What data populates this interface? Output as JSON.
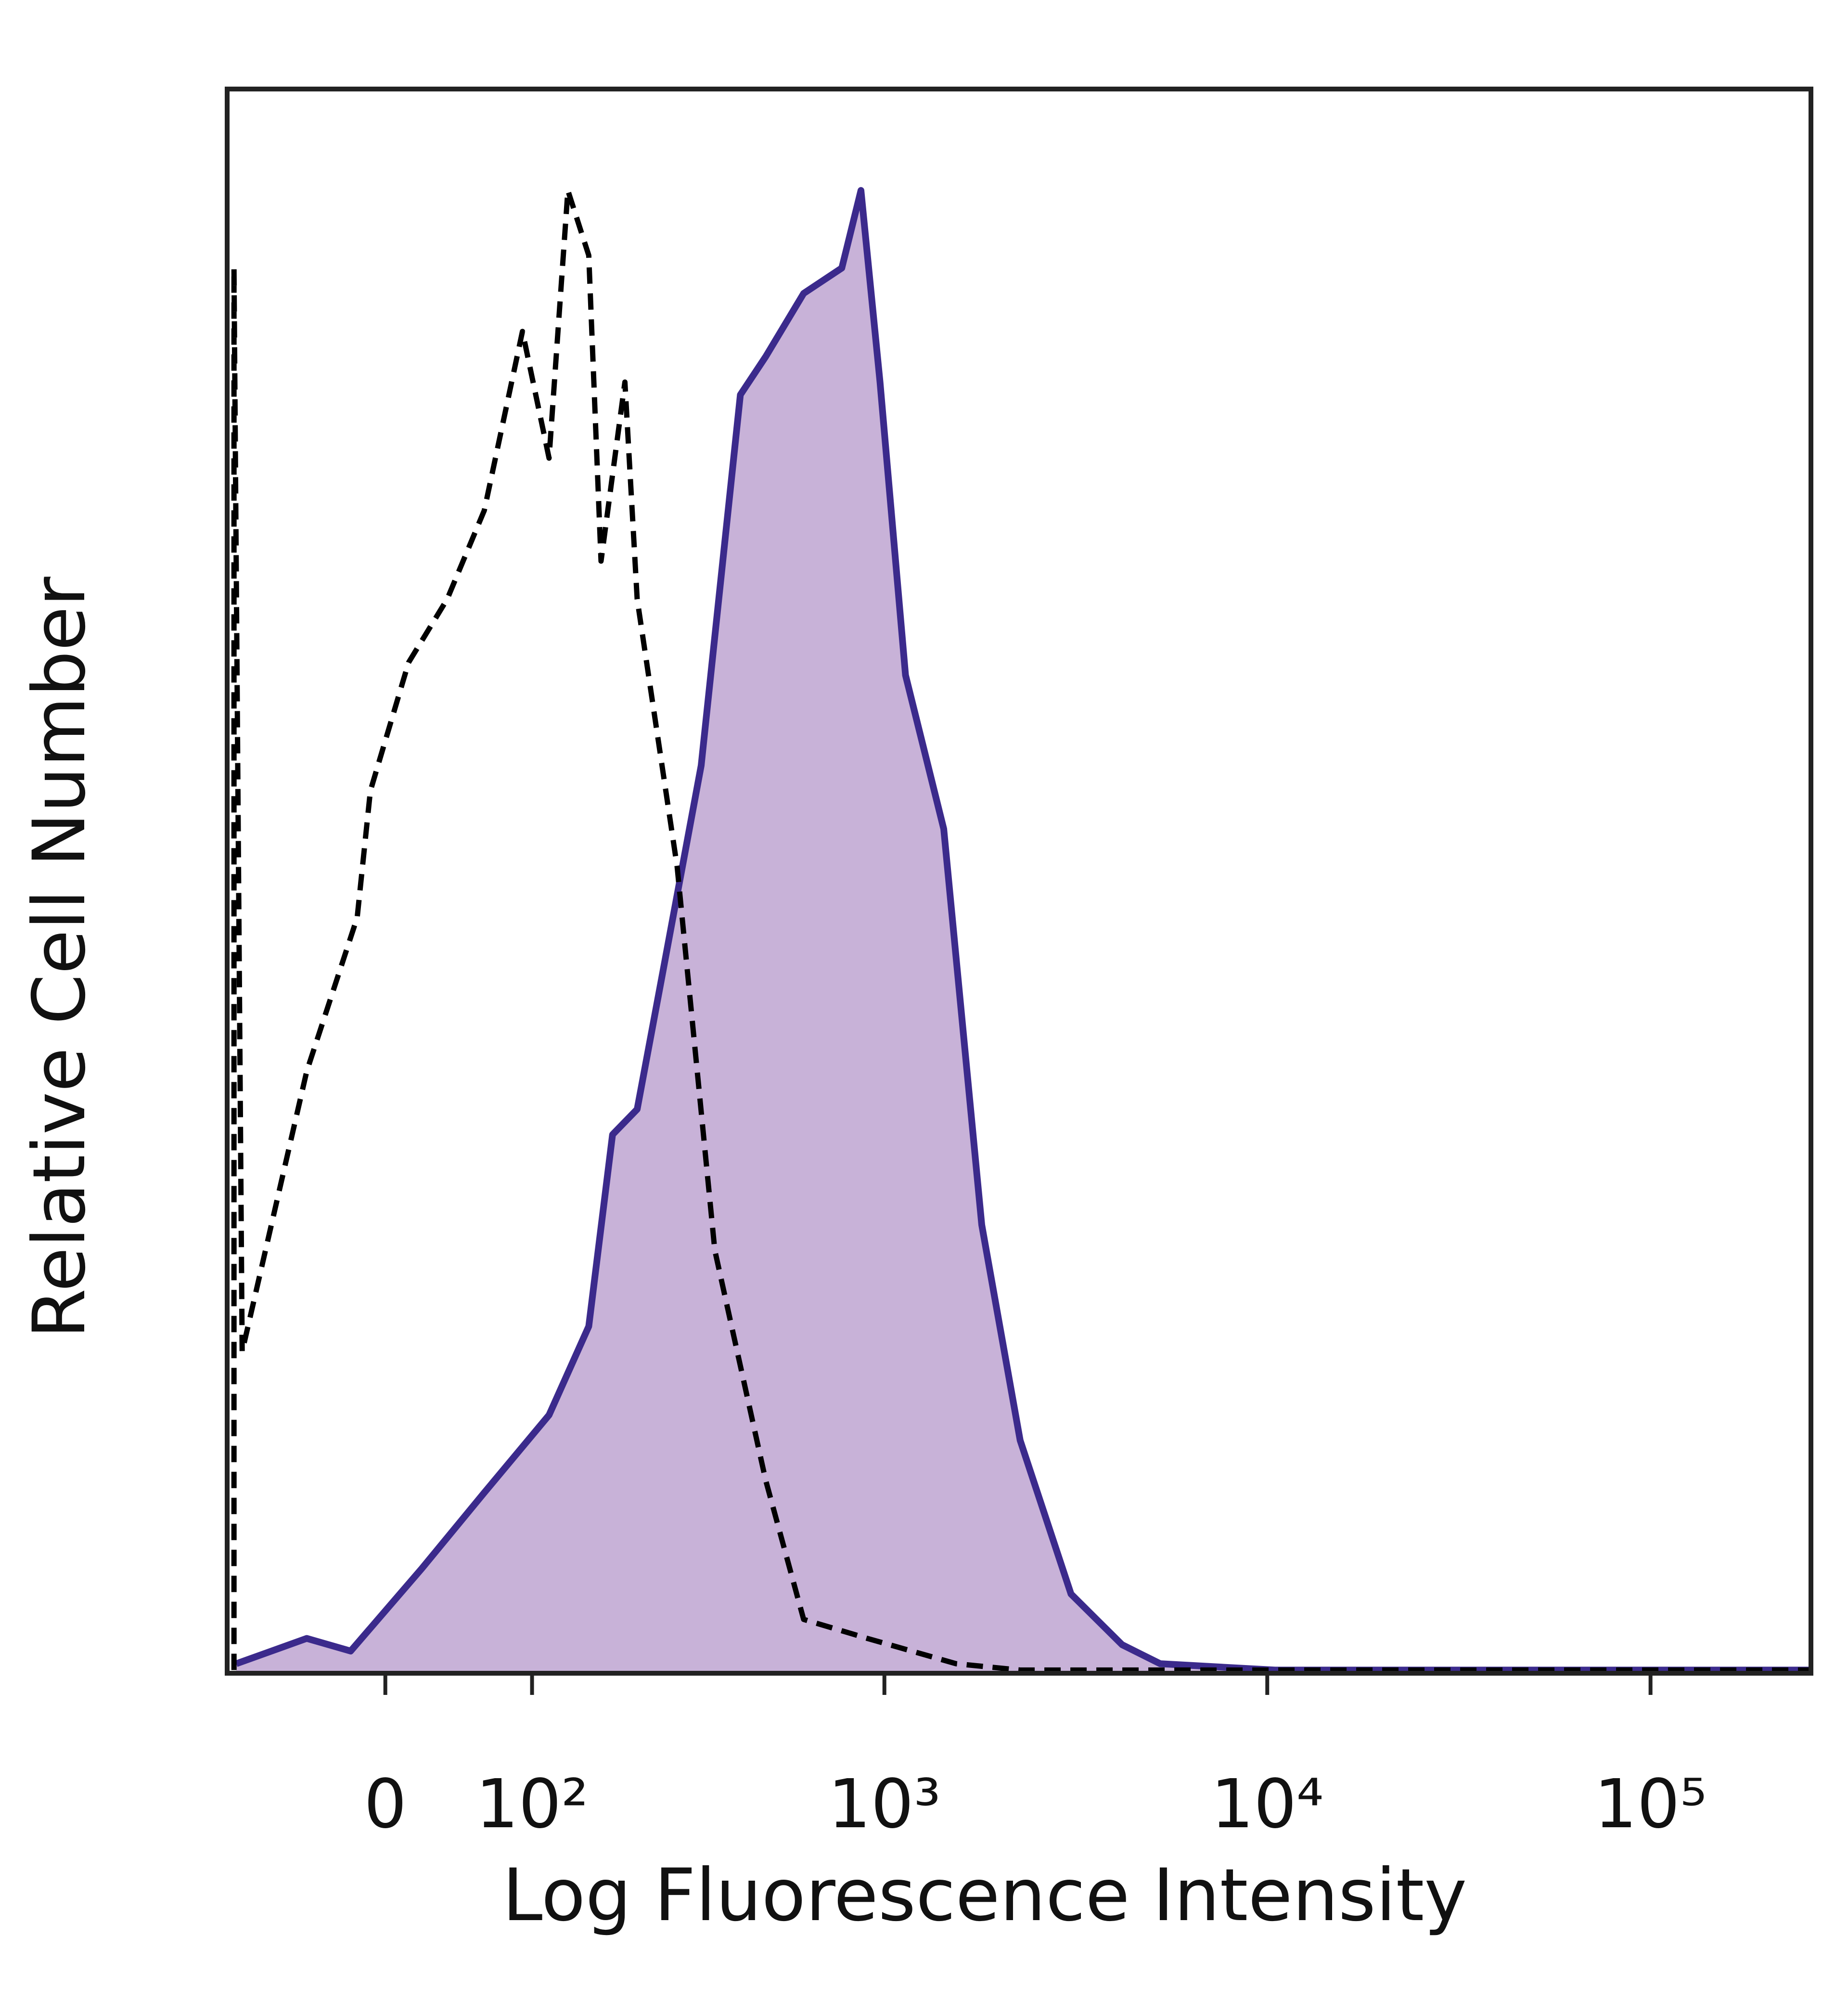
{
  "chart_data": {
    "type": "histogram-overlay",
    "xlabel": "Log Fluorescence Intensity",
    "ylabel": "Relative Cell Number",
    "xscale": "biexponential",
    "xlim": [
      -110,
      262144
    ],
    "ylim": [
      0,
      100
    ],
    "xticks": [
      0,
      {
        "value": 100,
        "label": "10²"
      },
      {
        "value": 1000,
        "label": "10³"
      },
      {
        "value": 10000,
        "label": "10⁴"
      },
      {
        "value": 100000,
        "label": "10⁵"
      }
    ],
    "series": [
      {
        "color": "#3b2a8c",
        "fill": "#c8b2d8",
        "style": "solid",
        "x": [
          -102,
          -49,
          -21,
          22,
          63,
          115,
          155,
          183,
          216,
          256,
          326,
          416,
          486,
          613,
          773,
          868,
          974,
          1136,
          1430,
          1798,
          2265,
          3075,
          4180,
          5256,
          10480,
          260000
        ],
        "values": [
          0.6,
          2.2,
          1.4,
          6.6,
          11.4,
          16.3,
          21.9,
          34,
          35.6,
          44.4,
          57.3,
          80.7,
          83.1,
          87.1,
          88.7,
          93.6,
          81.5,
          63,
          53.3,
          28.3,
          14.7,
          5,
          1.8,
          0.6,
          0.2,
          0.2
        ]
      },
      {
        "color": "#000000",
        "style": "dashed",
        "x": [
          -104,
          -104,
          -97,
          -49,
          -17,
          -9,
          14,
          38,
          63,
          92,
          115,
          133,
          155,
          169,
          199,
          216,
          280,
          355,
          486,
          613,
          902,
          1540,
          2265,
          260000
        ],
        "values": [
          0.2,
          88.7,
          20.3,
          38,
          47.7,
          55.7,
          63.8,
          67.8,
          73.4,
          84.7,
          76.7,
          93.6,
          89.5,
          70.2,
          81.5,
          67.8,
          50.9,
          26.7,
          12.2,
          3.4,
          2.2,
          0.6,
          0.2,
          0.2
        ]
      }
    ]
  }
}
